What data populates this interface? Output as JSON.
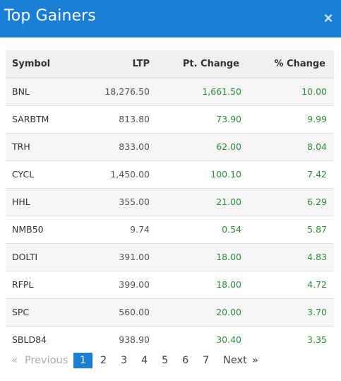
{
  "header": {
    "title": "Top Gainers",
    "close_glyph": "×"
  },
  "table": {
    "columns": [
      "Symbol",
      "LTP",
      "Pt. Change",
      "% Change"
    ],
    "rows": [
      {
        "symbol": "BNL",
        "ltp": "18,276.50",
        "pt_change": "1,661.50",
        "pct_change": "10.00"
      },
      {
        "symbol": "SARBTM",
        "ltp": "813.80",
        "pt_change": "73.90",
        "pct_change": "9.99"
      },
      {
        "symbol": "TRH",
        "ltp": "833.00",
        "pt_change": "62.00",
        "pct_change": "8.04"
      },
      {
        "symbol": "CYCL",
        "ltp": "1,450.00",
        "pt_change": "100.10",
        "pct_change": "7.42"
      },
      {
        "symbol": "HHL",
        "ltp": "355.00",
        "pt_change": "21.00",
        "pct_change": "6.29"
      },
      {
        "symbol": "NMB50",
        "ltp": "9.74",
        "pt_change": "0.54",
        "pct_change": "5.87"
      },
      {
        "symbol": "DOLTI",
        "ltp": "391.00",
        "pt_change": "18.00",
        "pct_change": "4.83"
      },
      {
        "symbol": "RFPL",
        "ltp": "399.00",
        "pt_change": "18.00",
        "pct_change": "4.72"
      },
      {
        "symbol": "SPC",
        "ltp": "560.00",
        "pt_change": "20.00",
        "pct_change": "3.70"
      },
      {
        "symbol": "SBLD84",
        "ltp": "938.90",
        "pt_change": "30.40",
        "pct_change": "3.35"
      }
    ]
  },
  "pagination": {
    "prev_glyph": "«",
    "prev_label": "Previous",
    "pages": [
      "1",
      "2",
      "3",
      "4",
      "5",
      "6",
      "7"
    ],
    "current_page": "1",
    "next_label": "Next",
    "next_glyph": "»"
  },
  "colors": {
    "header_bg": "#1b7ed6",
    "positive": "#2e8b3a",
    "active_page": "#1b7ed6"
  }
}
